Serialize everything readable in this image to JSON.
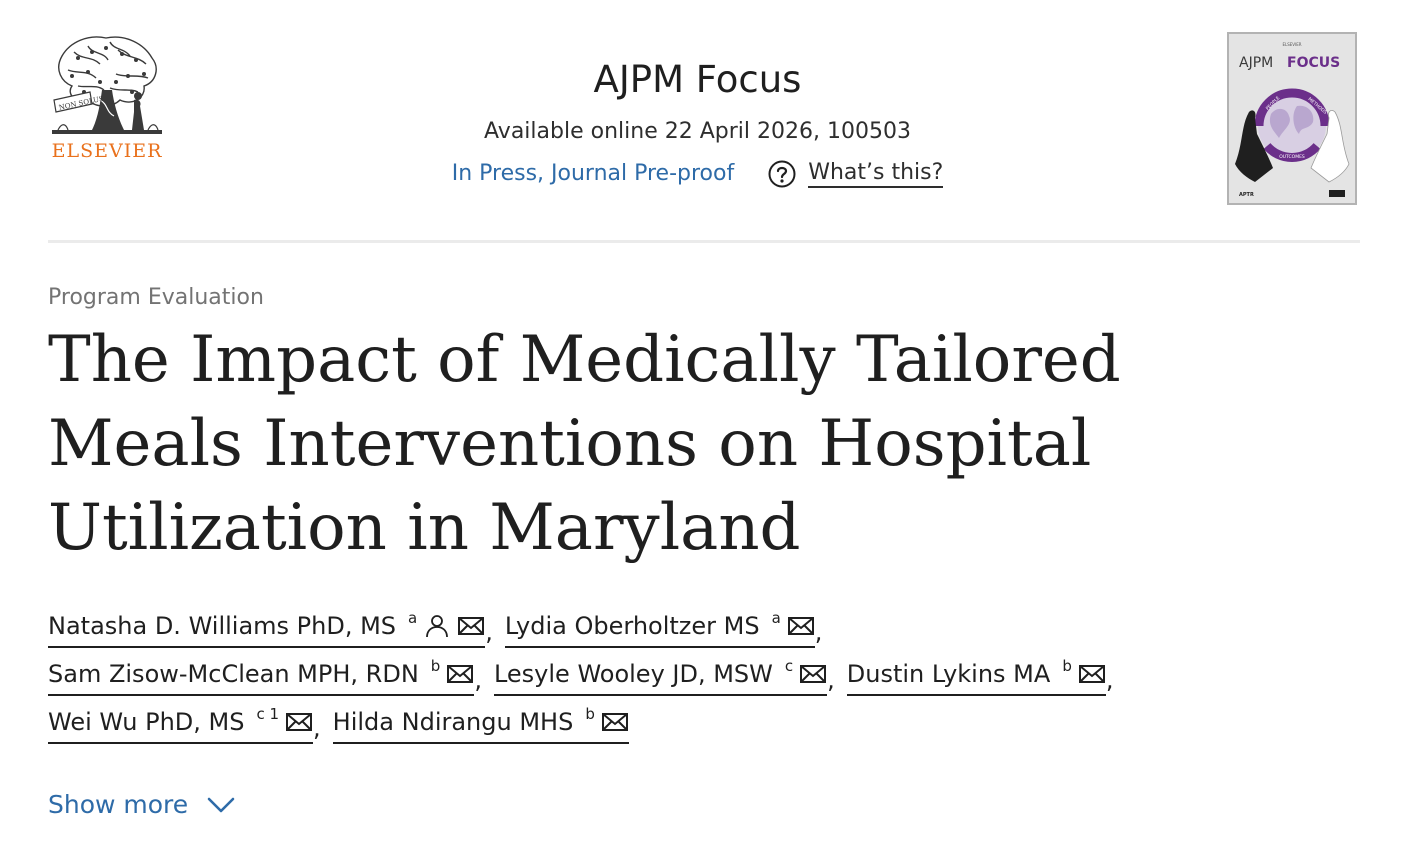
{
  "publisher": {
    "name": "ELSEVIER",
    "motto": "NON SOLUS"
  },
  "journal": {
    "title": "AJPM Focus",
    "availability": "Available online 22 April 2026, 100503",
    "status_link": "In Press, Journal Pre-proof",
    "whats_this": "What’s this?",
    "cover": {
      "publisher_small": "ELSEVIER",
      "title_a": "AJPM",
      "title_b": "FOCUS",
      "ring_top_left": "PEOPLE",
      "ring_top_right": "METHODS",
      "ring_bottom": "OUTCOMES",
      "footer_left": "APTR"
    }
  },
  "article": {
    "type": "Program Evaluation",
    "title": "The Impact of Medically Tailored Meals Interventions on Hospital Utilization in Maryland"
  },
  "authors": [
    {
      "name": "Natasha D. Williams PhD, MS",
      "sup": "a",
      "corresponding": true
    },
    {
      "name": "Lydia Oberholtzer MS",
      "sup": "a",
      "corresponding": false
    },
    {
      "name": "Sam Zisow-McClean MPH, RDN",
      "sup": "b",
      "corresponding": false
    },
    {
      "name": "Lesyle Wooley JD, MSW",
      "sup": "c",
      "corresponding": false
    },
    {
      "name": "Dustin Lykins MA",
      "sup": "b",
      "corresponding": false
    },
    {
      "name": "Wei Wu PhD, MS",
      "sup": "c 1",
      "corresponding": false
    },
    {
      "name": "Hilda Ndirangu MHS",
      "sup": "b",
      "corresponding": false
    }
  ],
  "separator": ",",
  "show_more": "Show more",
  "colors": {
    "link": "#2e6ba8",
    "elsevier_orange": "#e9711c",
    "text": "#1f1f1f",
    "muted": "#737373",
    "cover_purple": "#6b2f8a"
  },
  "icons": {
    "email": "envelope-icon",
    "person": "person-icon",
    "help": "question-circle-icon",
    "expand": "chevron-down-icon"
  }
}
